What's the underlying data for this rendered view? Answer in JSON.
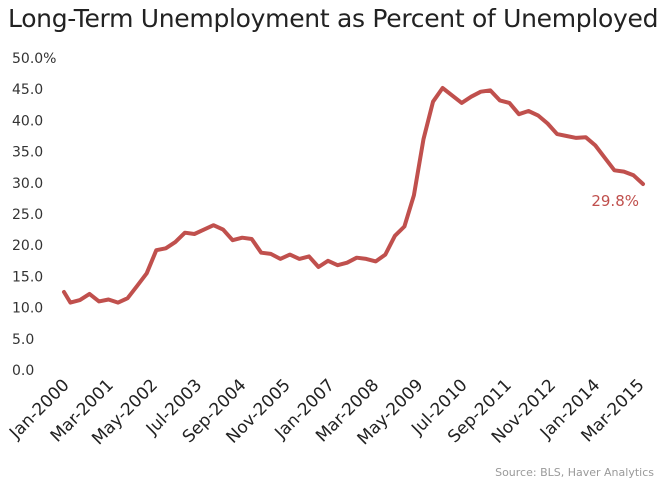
{
  "chart_data": {
    "type": "line",
    "title": "Long-Term Unemployment as Percent of Unemployed",
    "ylabel": "",
    "xlabel": "",
    "ylim": [
      0,
      50
    ],
    "y_ticks": [
      "0.0",
      "5.0",
      "10.0",
      "15.0",
      "20.0",
      "25.0",
      "30.0",
      "35.0",
      "40.0",
      "45.0",
      "50.0%"
    ],
    "x_tick_labels": [
      "Jan-2000",
      "Mar-2001",
      "May-2002",
      "Jul-2003",
      "Sep-2004",
      "Nov-2005",
      "Jan-2007",
      "Mar-2008",
      "May-2009",
      "Jul-2010",
      "Sep-2011",
      "Nov-2012",
      "Jan-2014",
      "Mar-2015"
    ],
    "grid": false,
    "line_color": "#c0504d",
    "end_label": "29.8%",
    "source": "Source: BLS, Haver Analytics",
    "series": [
      {
        "x": [
          "2000-01",
          "2000-03",
          "2000-06",
          "2000-09",
          "2000-12",
          "2001-03",
          "2001-06",
          "2001-09",
          "2001-12",
          "2002-03",
          "2002-06",
          "2002-09",
          "2002-12",
          "2003-03",
          "2003-06",
          "2003-09",
          "2003-12",
          "2004-03",
          "2004-06",
          "2004-09",
          "2004-12",
          "2005-03",
          "2005-06",
          "2005-09",
          "2005-12",
          "2006-03",
          "2006-06",
          "2006-09",
          "2006-12",
          "2007-03",
          "2007-06",
          "2007-09",
          "2007-12",
          "2008-03",
          "2008-06",
          "2008-09",
          "2008-12",
          "2009-03",
          "2009-06",
          "2009-09",
          "2009-12",
          "2010-03",
          "2010-06",
          "2010-09",
          "2010-12",
          "2011-03",
          "2011-06",
          "2011-09",
          "2011-12",
          "2012-03",
          "2012-06",
          "2012-09",
          "2012-12",
          "2013-03",
          "2013-06",
          "2013-09",
          "2013-12",
          "2014-03",
          "2014-06",
          "2014-09",
          "2014-12",
          "2015-03"
        ],
        "values": [
          12.5,
          10.8,
          11.2,
          12.2,
          11.0,
          11.3,
          10.8,
          11.5,
          13.5,
          15.5,
          19.2,
          19.5,
          20.5,
          22.0,
          21.8,
          22.5,
          23.2,
          22.5,
          20.8,
          21.2,
          21.0,
          18.8,
          18.6,
          17.8,
          18.5,
          17.8,
          18.2,
          16.5,
          17.5,
          16.8,
          17.2,
          18.0,
          17.8,
          17.4,
          18.5,
          21.5,
          23.0,
          28.0,
          37.0,
          43.0,
          45.2,
          44.0,
          42.8,
          43.8,
          44.6,
          44.8,
          43.2,
          42.8,
          41.0,
          41.5,
          40.8,
          39.5,
          37.8,
          37.5,
          37.2,
          37.3,
          36.0,
          34.0,
          32.0,
          31.8,
          31.2,
          29.8
        ]
      }
    ]
  }
}
